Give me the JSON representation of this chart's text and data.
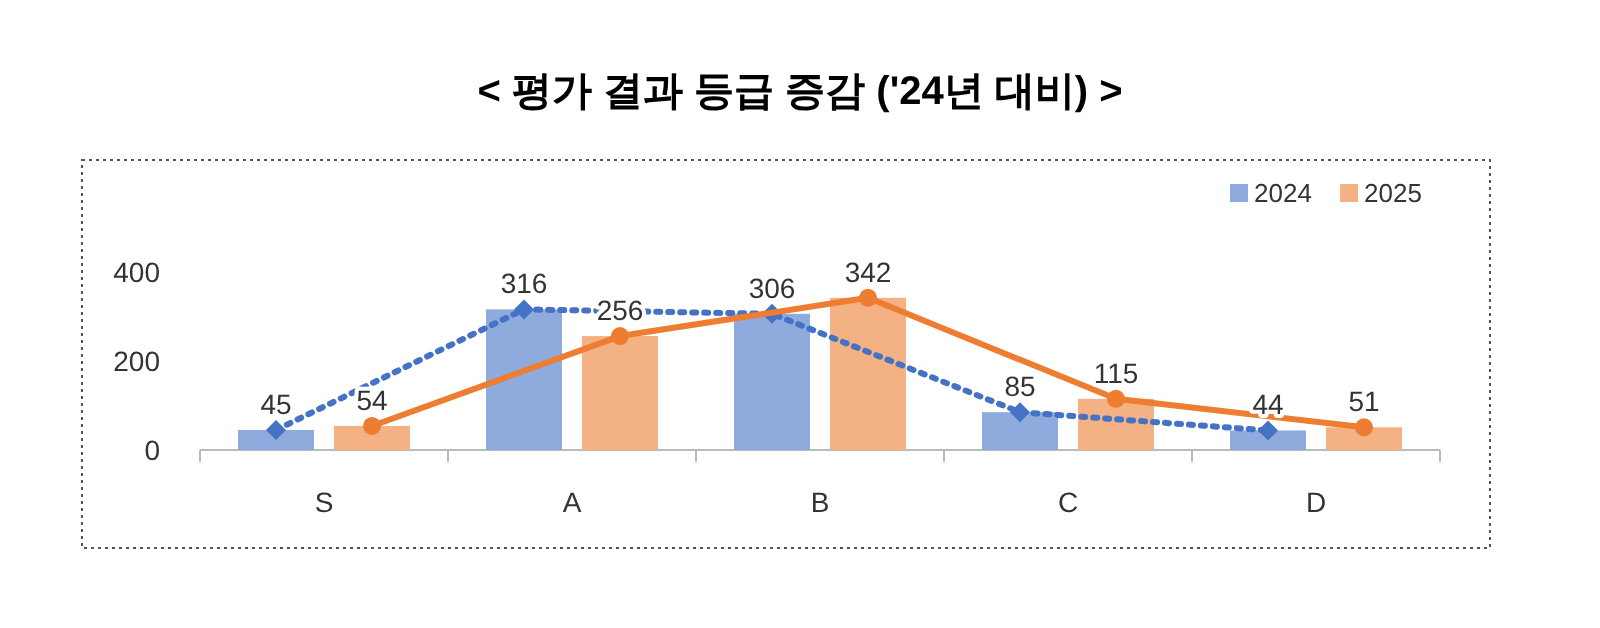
{
  "chart_data": {
    "type": "bar",
    "title": "< 평가 결과 등급 증감 ('24년 대비) >",
    "categories": [
      "S",
      "A",
      "B",
      "C",
      "D"
    ],
    "series": [
      {
        "name": "2024",
        "color": "#8faadc",
        "values": [
          45,
          316,
          306,
          85,
          44
        ],
        "value_labels": [
          "45",
          "316",
          "306",
          "85",
          "44"
        ]
      },
      {
        "name": "2025",
        "color": "#f4b183",
        "values": [
          54,
          256,
          342,
          115,
          51
        ],
        "value_labels": [
          "54",
          "256",
          "342",
          "115",
          "51"
        ]
      },
      {
        "type": "line",
        "color": "#4472c4",
        "values": [
          45,
          316,
          306,
          85,
          44
        ],
        "line_style": "dotted",
        "marker": "diamond"
      },
      {
        "type": "line",
        "color": "#ed7d31",
        "values": [
          54,
          256,
          342,
          115,
          51
        ],
        "line_style": "solid",
        "marker": "circle"
      }
    ],
    "ylim": [
      0,
      400
    ],
    "yticks": [
      0,
      200,
      400
    ],
    "grid": false,
    "legend": "top right"
  }
}
